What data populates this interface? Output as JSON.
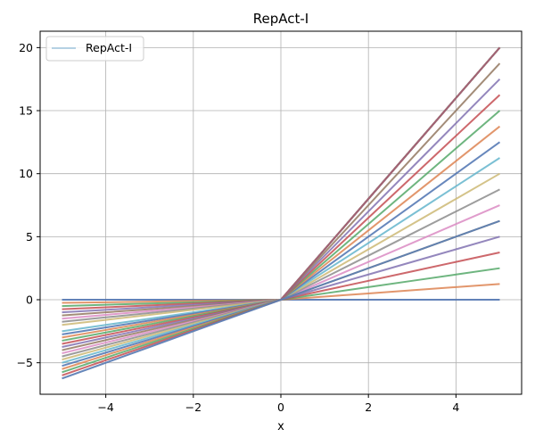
{
  "chart_data": {
    "type": "line",
    "title": "RepAct-I",
    "xlabel": "x",
    "ylabel": "",
    "xlim": [
      -5.5,
      5.5
    ],
    "ylim": [
      -7.5,
      21.3
    ],
    "xticks": [
      -4,
      -2,
      0,
      2,
      4
    ],
    "xtick_labels": [
      "−4",
      "−2",
      "0",
      "2",
      "4"
    ],
    "yticks": [
      -5,
      0,
      5,
      10,
      15,
      20
    ],
    "ytick_labels": [
      "−5",
      "0",
      "5",
      "10",
      "15",
      "20"
    ],
    "grid": true,
    "legend": {
      "position": "upper-left",
      "entries": [
        "RepAct-I"
      ]
    },
    "x": [
      -5,
      -4,
      -3,
      -2,
      -1,
      0,
      1,
      2,
      3,
      4,
      5
    ],
    "family": {
      "description_of_shape": "piecewise-linear curves through origin",
      "positive_side_final_values": [
        0,
        1.25,
        2.5,
        3.75,
        5,
        6.25,
        7.5,
        8.75,
        10,
        11.25,
        12.5,
        13.75,
        15,
        16.25,
        17.5,
        18.75,
        20
      ],
      "negative_side_final_values": [
        0,
        -0.25,
        -0.5,
        -0.75,
        -1.0,
        -1.25,
        -1.5,
        -1.75,
        -2.0,
        -2.5,
        -2.75,
        -3.0,
        -3.25,
        -3.5,
        -3.75,
        -4.0,
        -4.25,
        -4.5,
        -4.75,
        -5.0,
        -5.25,
        -5.5,
        -5.75,
        -6.0,
        -6.25
      ]
    },
    "series": [
      {
        "name": "RepAct-I",
        "values": [
          -6.25,
          -5.0,
          -3.75,
          -2.5,
          -1.25,
          0,
          1.25,
          2.5,
          3.75,
          5.0,
          6.25
        ]
      }
    ]
  },
  "colors": {
    "palette": [
      "#4c72b0",
      "#dd8452",
      "#55a868",
      "#c44e52",
      "#8172b2",
      "#937860",
      "#da8bc3",
      "#8c8c8c",
      "#ccb974",
      "#64b5cd"
    ],
    "grid": "#b0b0b0",
    "axis": "#000000"
  }
}
